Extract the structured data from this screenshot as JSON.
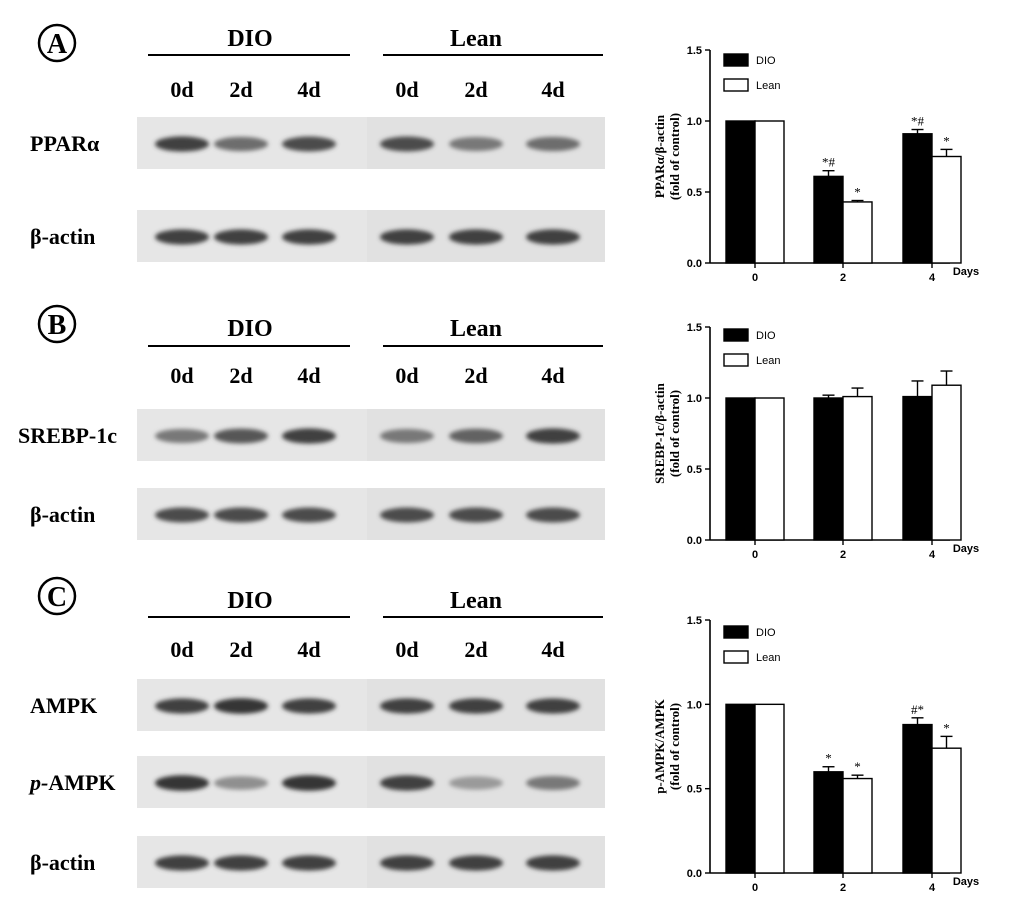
{
  "panels": [
    {
      "letter": "A",
      "groups": [
        "DIO",
        "Lean"
      ],
      "lanes": [
        "0d",
        "2d",
        "4d",
        "0d",
        "2d",
        "4d"
      ],
      "blots": [
        {
          "label": "PPARα",
          "italic_prefix": "",
          "intensity": [
            0.85,
            0.65,
            0.8,
            0.8,
            0.6,
            0.65
          ]
        },
        {
          "label": "β-actin",
          "italic_prefix": "",
          "intensity": [
            0.85,
            0.85,
            0.85,
            0.85,
            0.85,
            0.85
          ]
        }
      ]
    },
    {
      "letter": "B",
      "groups": [
        "DIO",
        "Lean"
      ],
      "lanes": [
        "0d",
        "2d",
        "4d",
        "0d",
        "2d",
        "4d"
      ],
      "blots": [
        {
          "label": "SREBP-1c",
          "italic_prefix": "",
          "intensity": [
            0.6,
            0.75,
            0.85,
            0.6,
            0.7,
            0.85
          ]
        },
        {
          "label": "β-actin",
          "italic_prefix": "",
          "intensity": [
            0.8,
            0.8,
            0.8,
            0.8,
            0.8,
            0.8
          ]
        }
      ]
    },
    {
      "letter": "C",
      "groups": [
        "DIO",
        "Lean"
      ],
      "lanes": [
        "0d",
        "2d",
        "4d",
        "0d",
        "2d",
        "4d"
      ],
      "blots": [
        {
          "label": "AMPK",
          "italic_prefix": "",
          "intensity": [
            0.85,
            0.9,
            0.85,
            0.85,
            0.85,
            0.85
          ]
        },
        {
          "label": "AMPK",
          "italic_prefix": "p-",
          "intensity": [
            0.9,
            0.5,
            0.9,
            0.85,
            0.45,
            0.6
          ]
        },
        {
          "label": "β-actin",
          "italic_prefix": "",
          "intensity": [
            0.85,
            0.85,
            0.85,
            0.85,
            0.85,
            0.85
          ]
        }
      ]
    }
  ],
  "chart_data": [
    {
      "type": "bar",
      "categories": [
        "0",
        "2",
        "4"
      ],
      "xlabel": "Days",
      "ylabel_lines": [
        "PPARα/β-actin",
        "(fold of control)"
      ],
      "ylim": [
        0,
        1.5
      ],
      "yticks": [
        "0.0",
        "0.5",
        "1.0",
        "1.5"
      ],
      "legend_position": "top-left",
      "series": [
        {
          "name": "DIO",
          "color": "#000000",
          "values": [
            1.0,
            0.61,
            0.91
          ],
          "errors": [
            0,
            0.04,
            0.03
          ],
          "annotations": [
            "",
            "*#",
            "*#"
          ]
        },
        {
          "name": "Lean",
          "color": "#ffffff",
          "values": [
            1.0,
            0.43,
            0.75
          ],
          "errors": [
            0,
            0.01,
            0.05
          ],
          "annotations": [
            "",
            "*",
            "*"
          ]
        }
      ]
    },
    {
      "type": "bar",
      "categories": [
        "0",
        "2",
        "4"
      ],
      "xlabel": "Days",
      "ylabel_lines": [
        "SREBP-1c/β-actin",
        "(fold of control)"
      ],
      "ylim": [
        0,
        1.5
      ],
      "yticks": [
        "0.0",
        "0.5",
        "1.0",
        "1.5"
      ],
      "legend_position": "top-left",
      "series": [
        {
          "name": "DIO",
          "color": "#000000",
          "values": [
            1.0,
            1.0,
            1.01
          ],
          "errors": [
            0,
            0.02,
            0.11
          ],
          "annotations": [
            "",
            "",
            ""
          ]
        },
        {
          "name": "Lean",
          "color": "#ffffff",
          "values": [
            1.0,
            1.01,
            1.09
          ],
          "errors": [
            0,
            0.06,
            0.1
          ],
          "annotations": [
            "",
            "",
            ""
          ]
        }
      ]
    },
    {
      "type": "bar",
      "categories": [
        "0",
        "2",
        "4"
      ],
      "xlabel": "Days",
      "ylabel_lines": [
        "p-AMPK/AMPK",
        "(fold of control)"
      ],
      "ylim": [
        0,
        1.5
      ],
      "yticks": [
        "0.0",
        "0.5",
        "1.0",
        "1.5"
      ],
      "legend_position": "top-left",
      "series": [
        {
          "name": "DIO",
          "color": "#000000",
          "values": [
            1.0,
            0.6,
            0.88
          ],
          "errors": [
            0,
            0.03,
            0.04
          ],
          "annotations": [
            "",
            "*",
            "#*"
          ]
        },
        {
          "name": "Lean",
          "color": "#ffffff",
          "values": [
            1.0,
            0.56,
            0.74
          ],
          "errors": [
            0,
            0.02,
            0.07
          ],
          "annotations": [
            "",
            "*",
            "*"
          ]
        }
      ]
    }
  ]
}
